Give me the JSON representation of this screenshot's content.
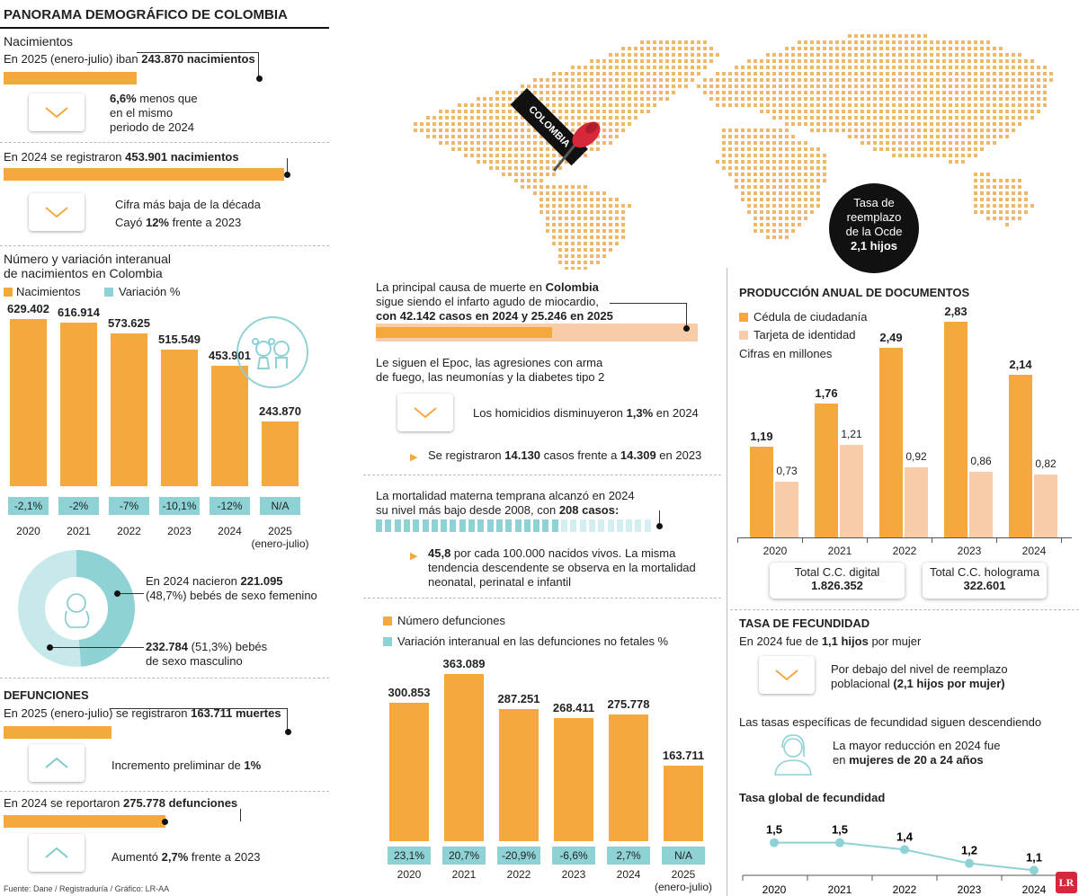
{
  "colors": {
    "orange": "#F5A83E",
    "teal": "#8FD2D6",
    "pink": "#F9CDAA",
    "black": "#111111"
  },
  "title": "PANORAMA DEMOGRÁFICO DE COLOMBIA",
  "births": {
    "heading": "Nacimientos",
    "line2025": {
      "pre": "En 2025 (enero-julio) iban ",
      "value": "243.870 nacimientos"
    },
    "note2025": {
      "bold": "6,6%",
      "text1": " menos que",
      "text2": "en el mismo",
      "text3": "periodo de 2024"
    },
    "line2024": {
      "pre": "En 2024 se registraron ",
      "value": "453.901 nacimientos"
    },
    "note2024": {
      "line1": "Cifra más baja de la década",
      "pre": "Cayó ",
      "bold": "12%",
      "post": " frente a 2023"
    }
  },
  "births_chart_text": {
    "title1": "Número y variación interanual",
    "title2": "de nacimientos en Colombia",
    "legend_a": "Nacimientos",
    "legend_b": "Variación %",
    "year_suffix": "(enero-julio)"
  },
  "gender": {
    "female1_pre": "En 2024 nacieron ",
    "female1_bold": "221.095",
    "female2": "(48,7%) bebés de sexo femenino",
    "male1_bold": "232.784",
    "male1_post": " (51,3%) bebés",
    "male2": "de sexo masculino"
  },
  "deaths": {
    "heading": "DEFUNCIONES",
    "line2025": {
      "pre": "En 2025 (enero-julio) se registraron ",
      "value": "163.711 muertes"
    },
    "note2025": {
      "pre": "Incremento preliminar de ",
      "bold": "1%"
    },
    "line2024": {
      "pre": "En 2024 se reportaron ",
      "value": "275.778 defunciones"
    },
    "note2024": {
      "pre": "Aumentó ",
      "bold": "2,7%",
      "post": " frente a 2023"
    }
  },
  "source": "Fuente: Dane / Registraduría / Gráfico: LR-AA",
  "map": {
    "pin_label": "COLOMBIA",
    "bubble": [
      "Tasa de",
      "reemplazo",
      "de la Ocde"
    ],
    "bubble_bold": "2,1 hijos"
  },
  "middle": {
    "cause1": "La principal causa de muerte en ",
    "cause_bold": "Colombia",
    "cause2": "sigue siendo el infarto agudo de miocardio,",
    "cause3": "con 42.142 casos en 2024 y 25.246 en 2025",
    "follow1": "Le siguen el Epoc, las agresiones con arma",
    "follow2": "de fuego, las neumonías y la diabetes tipo 2",
    "homicides_pre": "Los homicidios disminuyeron ",
    "homicides_bold": "1,3%",
    "homicides_post": " en 2024",
    "cases_pre": "Se registraron ",
    "cases_b1": "14.130",
    "cases_mid": " casos frente a ",
    "cases_b2": "14.309",
    "cases_post": " en 2023",
    "maternal1": "La mortalidad materna temprana alcanzó en 2024",
    "maternal2_pre": "su nivel más bajo desde 2008, con ",
    "maternal2_bold": "208 casos:",
    "rate_bold": "45,8",
    "rate1": " por cada 100.000 nacidos vivos. La misma",
    "rate2": "tendencia descendente se observa en la mortalidad",
    "rate3": "neonatal, perinatal e infantil",
    "legend_a": "Número defunciones",
    "legend_b": "Variación interanual en las defunciones no fetales %",
    "year_suffix": "(enero-julio)"
  },
  "documents": {
    "heading": "PRODUCCIÓN ANUAL DE DOCUMENTOS",
    "legend_a": "Cédula de ciudadanía",
    "legend_b": "Tarjeta de identidad",
    "units": "Cifras en millones",
    "total_digital_label": "Total C.C. digital",
    "total_digital_value": "1.826.352",
    "total_holo_label": "Total C.C. holograma",
    "total_holo_value": "322.601"
  },
  "fertility": {
    "heading": "TASA DE FECUNDIDAD",
    "line_pre": "En 2024 fue de ",
    "line_bold": "1,1 hijos",
    "line_post": " por mujer",
    "below1": "Por debajo del nivel de reemplazo",
    "below2_pre": "poblacional ",
    "below2_bold": "(2,1 hijos por mujer)",
    "specific": "Las tasas específicas de fecundidad siguen descendiendo",
    "reduction1": "La mayor reducción en 2024 fue",
    "reduction2_pre": "en ",
    "reduction2_bold": "mujeres de 20 a 24 años",
    "global_title": "Tasa global de fecundidad"
  },
  "chart_data": [
    {
      "type": "bar",
      "title": "Número y variación interanual de nacimientos en Colombia",
      "categories": [
        "2020",
        "2021",
        "2022",
        "2023",
        "2024",
        "2025"
      ],
      "values": [
        629402,
        616914,
        573625,
        515549,
        453901,
        243870
      ],
      "value_labels": [
        "629.402",
        "616.914",
        "573.625",
        "515.549",
        "453.901",
        "243.870"
      ],
      "variation_labels": [
        "-2,1%",
        "-2%",
        "-7%",
        "-10,1%",
        "-12%",
        "N/A"
      ],
      "ylim": [
        0,
        629402
      ]
    },
    {
      "type": "pie",
      "title": "Nacimientos por sexo 2024",
      "labels": [
        "Femenino",
        "Masculino"
      ],
      "values": [
        48.7,
        51.3
      ]
    },
    {
      "type": "bar",
      "title": "Defunciones",
      "categories": [
        "2020",
        "2021",
        "2022",
        "2023",
        "2024",
        "2025"
      ],
      "values": [
        300853,
        363089,
        287251,
        268411,
        275778,
        163711
      ],
      "value_labels": [
        "300.853",
        "363.089",
        "287.251",
        "268.411",
        "275.778",
        "163.711"
      ],
      "variation_labels": [
        "23,1%",
        "20,7%",
        "-20,9%",
        "-6,6%",
        "2,7%",
        "N/A"
      ],
      "ylim": [
        0,
        363089
      ]
    },
    {
      "type": "bar",
      "title": "Producción anual de documentos (millones)",
      "categories": [
        "2020",
        "2021",
        "2022",
        "2023",
        "2024"
      ],
      "series": [
        {
          "name": "Cédula de ciudadanía",
          "values": [
            1.19,
            1.76,
            2.49,
            2.83,
            2.14
          ],
          "labels": [
            "1,19",
            "1,76",
            "2,49",
            "2,83",
            "2,14"
          ]
        },
        {
          "name": "Tarjeta de identidad",
          "values": [
            0.73,
            1.21,
            0.92,
            0.86,
            0.82
          ],
          "labels": [
            "0,73",
            "1,21",
            "0,92",
            "0,86",
            "0,82"
          ]
        }
      ],
      "ylim": [
        0,
        2.83
      ]
    },
    {
      "type": "line",
      "title": "Tasa global de fecundidad",
      "x": [
        "2020",
        "2021",
        "2022",
        "2023",
        "2024"
      ],
      "values": [
        1.5,
        1.5,
        1.4,
        1.2,
        1.1
      ],
      "labels": [
        "1,5",
        "1,5",
        "1,4",
        "1,2",
        "1,1"
      ],
      "ylim": [
        1.0,
        1.6
      ]
    }
  ]
}
